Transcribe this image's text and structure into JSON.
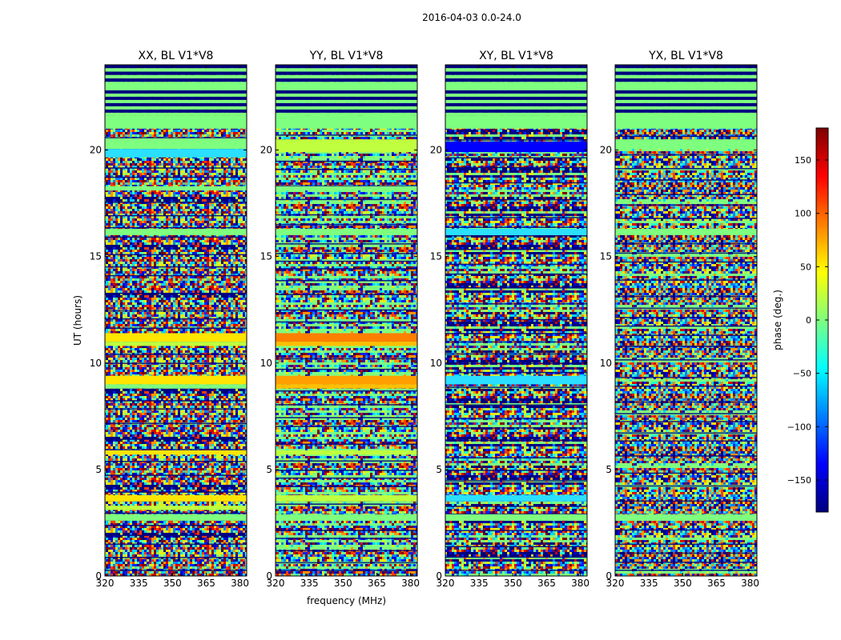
{
  "figure": {
    "suptitle": "2016-04-03 0.0-24.0"
  },
  "chart_data": [
    {
      "type": "heatmap",
      "title": "XX, BL V1*V8",
      "xlabel": "",
      "ylabel": "UT (hours)",
      "xlim": [
        320,
        383
      ],
      "ylim": [
        0,
        24
      ],
      "xticks": [
        320,
        335,
        350,
        365,
        380
      ],
      "yticks": [
        0,
        5,
        10,
        15,
        20
      ],
      "colormap": "jet",
      "value_range": [
        -180,
        180
      ],
      "value_units": "phase (deg.)",
      "bands": [
        {
          "t": [
            23.2,
            24.0
          ],
          "kind": "stripes",
          "colors": [
            "#00007f",
            "#7fff7f"
          ]
        },
        {
          "t": [
            22.8,
            23.2
          ],
          "kind": "solid",
          "color": "#7fff7f"
        },
        {
          "t": [
            21.6,
            22.8
          ],
          "kind": "stripes",
          "colors": [
            "#00007f",
            "#7fff7f"
          ]
        },
        {
          "t": [
            21.0,
            21.6
          ],
          "kind": "solid",
          "color": "#7fff7f"
        },
        {
          "t": [
            20.05,
            20.55
          ],
          "kind": "solid",
          "color": "#7fff7f"
        },
        {
          "t": [
            19.65,
            20.05
          ],
          "kind": "solid",
          "color": "#2adfff"
        },
        {
          "t": [
            18.1,
            18.3
          ],
          "kind": "solid",
          "color": "#7fff7f"
        },
        {
          "t": [
            16.0,
            16.3
          ],
          "kind": "solid",
          "color": "#7fff7f"
        },
        {
          "t": [
            11.0,
            11.4
          ],
          "kind": "solid",
          "color": "#ffe500"
        },
        {
          "t": [
            10.8,
            11.0
          ],
          "kind": "solid",
          "color": "#bfff3f"
        },
        {
          "t": [
            9.0,
            9.4
          ],
          "kind": "solid",
          "color": "#ffe500"
        },
        {
          "t": [
            8.8,
            9.0
          ],
          "kind": "solid",
          "color": "#7fff7f"
        },
        {
          "t": [
            5.7,
            5.9
          ],
          "kind": "solid",
          "color": "#ffe500"
        },
        {
          "t": [
            3.5,
            3.8
          ],
          "kind": "solid",
          "color": "#ffe500"
        },
        {
          "t": [
            3.1,
            3.3
          ],
          "kind": "solid",
          "color": "#bfff3f"
        },
        {
          "t": [
            2.6,
            2.9
          ],
          "kind": "solid",
          "color": "#7fff7f"
        }
      ]
    },
    {
      "type": "heatmap",
      "title": "YY, BL V1*V8",
      "xlabel": "frequency (MHz)",
      "ylabel": "",
      "xlim": [
        320,
        383
      ],
      "ylim": [
        0,
        24
      ],
      "xticks": [
        320,
        335,
        350,
        365,
        380
      ],
      "yticks": [
        0,
        5,
        10,
        15,
        20
      ],
      "colormap": "jet",
      "value_range": [
        -180,
        180
      ],
      "value_units": "phase (deg.)",
      "bands": [
        {
          "t": [
            23.2,
            24.0
          ],
          "kind": "stripes",
          "colors": [
            "#00007f",
            "#7fff7f"
          ]
        },
        {
          "t": [
            22.8,
            23.2
          ],
          "kind": "solid",
          "color": "#7fff7f"
        },
        {
          "t": [
            21.6,
            22.8
          ],
          "kind": "stripes",
          "colors": [
            "#00007f",
            "#7fff7f"
          ]
        },
        {
          "t": [
            21.0,
            21.6
          ],
          "kind": "solid",
          "color": "#7fff7f"
        },
        {
          "t": [
            19.9,
            20.5
          ],
          "kind": "solid",
          "color": "#bfff3f"
        },
        {
          "t": [
            18.1,
            18.3
          ],
          "kind": "solid",
          "color": "#7fff7f"
        },
        {
          "t": [
            16.0,
            16.3
          ],
          "kind": "solid",
          "color": "#7fff7f"
        },
        {
          "t": [
            11.0,
            11.4
          ],
          "kind": "solid",
          "color": "#ff7f00"
        },
        {
          "t": [
            10.8,
            11.0
          ],
          "kind": "solid",
          "color": "#ffbf00"
        },
        {
          "t": [
            9.0,
            9.4
          ],
          "kind": "solid",
          "color": "#ff9f00"
        },
        {
          "t": [
            8.8,
            9.0
          ],
          "kind": "solid",
          "color": "#ffbf00"
        },
        {
          "t": [
            5.7,
            5.9
          ],
          "kind": "solid",
          "color": "#bfff3f"
        },
        {
          "t": [
            3.5,
            3.8
          ],
          "kind": "solid",
          "color": "#bfff3f"
        },
        {
          "t": [
            2.6,
            2.9
          ],
          "kind": "solid",
          "color": "#7fff7f"
        }
      ]
    },
    {
      "type": "heatmap",
      "title": "XY, BL V1*V8",
      "xlabel": "",
      "ylabel": "",
      "xlim": [
        320,
        383
      ],
      "ylim": [
        0,
        24
      ],
      "xticks": [
        320,
        335,
        350,
        365,
        380
      ],
      "yticks": [
        0,
        5,
        10,
        15,
        20
      ],
      "colormap": "jet",
      "value_range": [
        -180,
        180
      ],
      "value_units": "phase (deg.)",
      "bands": [
        {
          "t": [
            23.2,
            24.0
          ],
          "kind": "stripes",
          "colors": [
            "#00007f",
            "#7fff7f"
          ]
        },
        {
          "t": [
            22.8,
            23.2
          ],
          "kind": "solid",
          "color": "#7fff7f"
        },
        {
          "t": [
            21.6,
            22.8
          ],
          "kind": "stripes",
          "colors": [
            "#00007f",
            "#7fff7f"
          ]
        },
        {
          "t": [
            21.0,
            21.6
          ],
          "kind": "solid",
          "color": "#7fff7f"
        },
        {
          "t": [
            19.9,
            20.4
          ],
          "kind": "solid",
          "color": "#0000ff"
        },
        {
          "t": [
            16.0,
            16.3
          ],
          "kind": "solid",
          "color": "#2adfff"
        },
        {
          "t": [
            9.0,
            9.4
          ],
          "kind": "solid",
          "color": "#2adfff"
        },
        {
          "t": [
            3.5,
            3.8
          ],
          "kind": "solid",
          "color": "#2adfff"
        },
        {
          "t": [
            2.6,
            2.9
          ],
          "kind": "solid",
          "color": "#7fff7f"
        }
      ]
    },
    {
      "type": "heatmap",
      "title": "YX, BL V1*V8",
      "xlabel": "",
      "ylabel": "",
      "xlim": [
        320,
        383
      ],
      "ylim": [
        0,
        24
      ],
      "xticks": [
        320,
        335,
        350,
        365,
        380
      ],
      "yticks": [
        0,
        5,
        10,
        15,
        20
      ],
      "colormap": "jet",
      "value_range": [
        -180,
        180
      ],
      "value_units": "phase (deg.)",
      "bands": [
        {
          "t": [
            23.2,
            24.0
          ],
          "kind": "stripes",
          "colors": [
            "#00007f",
            "#7fff7f"
          ]
        },
        {
          "t": [
            22.8,
            23.2
          ],
          "kind": "solid",
          "color": "#7fff7f"
        },
        {
          "t": [
            21.6,
            22.8
          ],
          "kind": "stripes",
          "colors": [
            "#00007f",
            "#7fff7f"
          ]
        },
        {
          "t": [
            21.0,
            21.6
          ],
          "kind": "solid",
          "color": "#7fff7f"
        },
        {
          "t": [
            20.05,
            20.5
          ],
          "kind": "solid",
          "color": "#7fff7f"
        },
        {
          "t": [
            16.0,
            16.3
          ],
          "kind": "solid",
          "color": "#7fff7f"
        },
        {
          "t": [
            2.6,
            2.9
          ],
          "kind": "solid",
          "color": "#7fff7f"
        }
      ]
    }
  ],
  "colorbar": {
    "label": "phase (deg.)",
    "vmin": -180,
    "vmax": 180,
    "ticks": [
      "150",
      "100",
      "50",
      "0",
      "−50",
      "−100",
      "−150"
    ],
    "tick_values": [
      150,
      100,
      50,
      0,
      -50,
      -100,
      -150
    ],
    "colors": [
      "#00007f",
      "#0000ff",
      "#007fff",
      "#00ffff",
      "#7fff7f",
      "#ffff00",
      "#ff7f00",
      "#ff0000",
      "#7f0000"
    ]
  }
}
